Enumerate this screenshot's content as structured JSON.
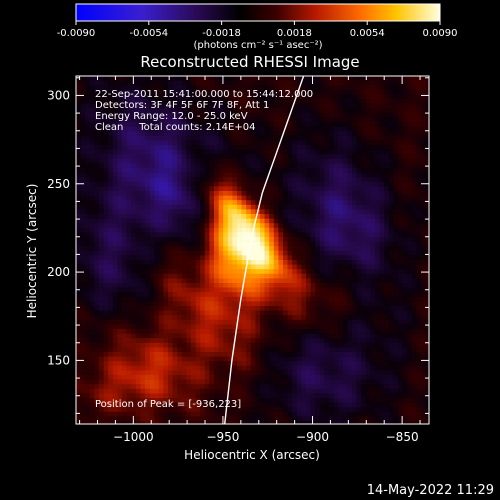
{
  "colorbar": {
    "ticks": [
      "-0.0090",
      "-0.0054",
      "-0.0018",
      "0.0018",
      "0.0054",
      "0.0090"
    ],
    "tick_values": [
      -0.009,
      -0.0054,
      -0.0018,
      0.0018,
      0.0054,
      0.009
    ],
    "min": -0.009,
    "max": 0.009,
    "units_label": "(photons cm⁻² s⁻¹ asec⁻²)"
  },
  "chart_data": {
    "type": "heatmap",
    "title": "Reconstructed RHESSI Image",
    "xlabel": "Heliocentric X (arcsec)",
    "ylabel": "Heliocentric Y (arcsec)",
    "xlim": [
      -1032,
      -835
    ],
    "ylim": [
      114,
      311
    ],
    "x_ticks": [
      -1000,
      -950,
      -900,
      -850
    ],
    "y_ticks": [
      150,
      200,
      250,
      300
    ],
    "x_tick_labels": [
      "−1000",
      "−950",
      "−900",
      "−850"
    ],
    "y_tick_labels": [
      "150",
      "200",
      "250",
      "300"
    ],
    "color_scale": "red-temperature",
    "peak": {
      "x": -936,
      "y": 223
    },
    "limb_curve": {
      "x": [
        -949,
        -945,
        -940,
        -934,
        -928,
        -921,
        -914,
        -905
      ],
      "y": [
        114,
        150,
        185,
        220,
        245,
        265,
        285,
        311
      ]
    },
    "info_lines": [
      "22-Sep-2011 15:41:00.000 to 15:44:12.000",
      "Detectors: 3F 4F 5F 6F 7F 8F, Att 1",
      "Energy Range: 12.0 - 25.0 keV",
      "Clean     Total counts: 2.14E+04"
    ],
    "peak_label": "Position of Peak = [-936,223]"
  },
  "footer_date": "14-May-2022 11:29"
}
